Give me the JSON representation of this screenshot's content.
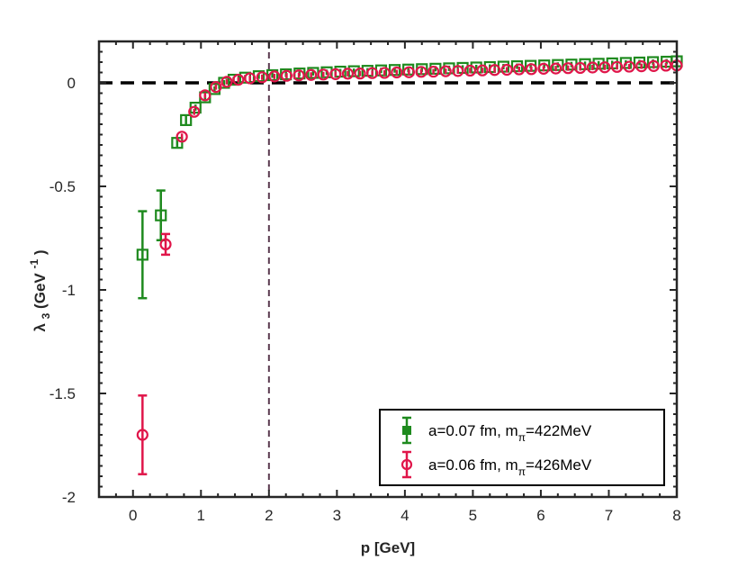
{
  "chart_data": {
    "type": "scatter",
    "xlabel": "p [GeV]",
    "ylabel": {
      "base": "λ",
      "sub": "3",
      "unit_open": "(GeV",
      "unit_sup": "-1",
      "unit_close": ")"
    },
    "xlim": [
      -0.5,
      8
    ],
    "ylim": [
      -2,
      0.2
    ],
    "xticks": [
      0,
      1,
      2,
      3,
      4,
      5,
      6,
      7,
      8
    ],
    "xtick_labels": [
      "0",
      "1",
      "2",
      "3",
      "4",
      "5",
      "6",
      "7",
      "8"
    ],
    "yticks": [
      0,
      -0.5,
      -1,
      -1.5,
      -2
    ],
    "ytick_labels": [
      "0",
      "-0.5",
      "-1",
      "-1.5",
      "-2"
    ],
    "reference_lines": [
      {
        "orientation": "horizontal",
        "value": 0,
        "style": "dashed",
        "color": "#000000"
      },
      {
        "orientation": "vertical",
        "value": 2,
        "style": "dashed",
        "color": "#5a3a4f"
      }
    ],
    "legend_position": "bottom-right",
    "series": [
      {
        "legend": {
          "pre": "a=0.07 fm, m",
          "sub": "π",
          "post": "=422MeV"
        },
        "marker": "square",
        "color": "#1e8a1e",
        "points": [
          {
            "x": 0.14,
            "y": -0.83,
            "err": 0.21
          },
          {
            "x": 0.41,
            "y": -0.64,
            "err": 0.12
          },
          {
            "x": 0.65,
            "y": -0.29,
            "err": 0.02
          },
          {
            "x": 0.78,
            "y": -0.18,
            "err": 0.02
          },
          {
            "x": 0.92,
            "y": -0.12,
            "err": 0.015
          },
          {
            "x": 1.06,
            "y": -0.07,
            "err": 0.01
          },
          {
            "x": 1.2,
            "y": -0.03,
            "err": 0.01
          },
          {
            "x": 1.34,
            "y": 0.0,
            "err": 0.01
          },
          {
            "x": 1.48,
            "y": 0.015,
            "err": 0.01
          },
          {
            "x": 1.65,
            "y": 0.025,
            "err": 0.008
          },
          {
            "x": 1.85,
            "y": 0.032,
            "err": 0.008
          },
          {
            "x": 2.05,
            "y": 0.037,
            "err": 0.008
          },
          {
            "x": 2.25,
            "y": 0.041,
            "err": 0.008
          },
          {
            "x": 2.45,
            "y": 0.045,
            "err": 0.008
          },
          {
            "x": 2.65,
            "y": 0.048,
            "err": 0.008
          },
          {
            "x": 2.85,
            "y": 0.051,
            "err": 0.008
          },
          {
            "x": 3.05,
            "y": 0.054,
            "err": 0.008
          },
          {
            "x": 3.25,
            "y": 0.056,
            "err": 0.008
          },
          {
            "x": 3.45,
            "y": 0.058,
            "err": 0.008
          },
          {
            "x": 3.65,
            "y": 0.06,
            "err": 0.008
          },
          {
            "x": 3.85,
            "y": 0.062,
            "err": 0.008
          },
          {
            "x": 4.05,
            "y": 0.064,
            "err": 0.008
          },
          {
            "x": 4.25,
            "y": 0.066,
            "err": 0.008
          },
          {
            "x": 4.45,
            "y": 0.068,
            "err": 0.008
          },
          {
            "x": 4.65,
            "y": 0.07,
            "err": 0.008
          },
          {
            "x": 4.85,
            "y": 0.072,
            "err": 0.008
          },
          {
            "x": 5.05,
            "y": 0.074,
            "err": 0.008
          },
          {
            "x": 5.25,
            "y": 0.076,
            "err": 0.008
          },
          {
            "x": 5.45,
            "y": 0.078,
            "err": 0.008
          },
          {
            "x": 5.65,
            "y": 0.08,
            "err": 0.008
          },
          {
            "x": 5.85,
            "y": 0.082,
            "err": 0.008
          },
          {
            "x": 6.05,
            "y": 0.084,
            "err": 0.008
          },
          {
            "x": 6.25,
            "y": 0.086,
            "err": 0.008
          },
          {
            "x": 6.45,
            "y": 0.088,
            "err": 0.008
          },
          {
            "x": 6.65,
            "y": 0.09,
            "err": 0.008
          },
          {
            "x": 6.85,
            "y": 0.092,
            "err": 0.008
          },
          {
            "x": 7.05,
            "y": 0.094,
            "err": 0.008
          },
          {
            "x": 7.25,
            "y": 0.096,
            "err": 0.008
          },
          {
            "x": 7.45,
            "y": 0.098,
            "err": 0.008
          },
          {
            "x": 7.65,
            "y": 0.1,
            "err": 0.008
          },
          {
            "x": 7.85,
            "y": 0.102,
            "err": 0.008
          },
          {
            "x": 8.0,
            "y": 0.104,
            "err": 0.008
          }
        ]
      },
      {
        "legend": {
          "pre": "a=0.06 fm, m",
          "sub": "π",
          "post": "=426MeV"
        },
        "marker": "circle",
        "color": "#e0164a",
        "points": [
          {
            "x": 0.14,
            "y": -1.7,
            "err": 0.19
          },
          {
            "x": 0.48,
            "y": -0.78,
            "err": 0.05
          },
          {
            "x": 0.72,
            "y": -0.26,
            "err": 0.015
          },
          {
            "x": 0.9,
            "y": -0.14,
            "err": 0.015
          },
          {
            "x": 1.06,
            "y": -0.06,
            "err": 0.01
          },
          {
            "x": 1.22,
            "y": -0.02,
            "err": 0.01
          },
          {
            "x": 1.38,
            "y": 0.005,
            "err": 0.008
          },
          {
            "x": 1.55,
            "y": 0.015,
            "err": 0.008
          },
          {
            "x": 1.72,
            "y": 0.022,
            "err": 0.008
          },
          {
            "x": 1.9,
            "y": 0.027,
            "err": 0.008
          },
          {
            "x": 2.08,
            "y": 0.031,
            "err": 0.008
          },
          {
            "x": 2.26,
            "y": 0.034,
            "err": 0.008
          },
          {
            "x": 2.44,
            "y": 0.036,
            "err": 0.008
          },
          {
            "x": 2.62,
            "y": 0.038,
            "err": 0.008
          },
          {
            "x": 2.8,
            "y": 0.04,
            "err": 0.008
          },
          {
            "x": 2.98,
            "y": 0.042,
            "err": 0.008
          },
          {
            "x": 3.16,
            "y": 0.044,
            "err": 0.008
          },
          {
            "x": 3.34,
            "y": 0.045,
            "err": 0.008
          },
          {
            "x": 3.52,
            "y": 0.047,
            "err": 0.008
          },
          {
            "x": 3.7,
            "y": 0.048,
            "err": 0.008
          },
          {
            "x": 3.88,
            "y": 0.05,
            "err": 0.008
          },
          {
            "x": 4.06,
            "y": 0.051,
            "err": 0.008
          },
          {
            "x": 4.24,
            "y": 0.053,
            "err": 0.008
          },
          {
            "x": 4.42,
            "y": 0.054,
            "err": 0.008
          },
          {
            "x": 4.6,
            "y": 0.056,
            "err": 0.008
          },
          {
            "x": 4.78,
            "y": 0.057,
            "err": 0.008
          },
          {
            "x": 4.96,
            "y": 0.059,
            "err": 0.008
          },
          {
            "x": 5.14,
            "y": 0.06,
            "err": 0.008
          },
          {
            "x": 5.32,
            "y": 0.062,
            "err": 0.008
          },
          {
            "x": 5.5,
            "y": 0.063,
            "err": 0.008
          },
          {
            "x": 5.68,
            "y": 0.065,
            "err": 0.008
          },
          {
            "x": 5.86,
            "y": 0.066,
            "err": 0.008
          },
          {
            "x": 6.04,
            "y": 0.068,
            "err": 0.008
          },
          {
            "x": 6.22,
            "y": 0.069,
            "err": 0.008
          },
          {
            "x": 6.4,
            "y": 0.071,
            "err": 0.008
          },
          {
            "x": 6.58,
            "y": 0.072,
            "err": 0.008
          },
          {
            "x": 6.76,
            "y": 0.074,
            "err": 0.008
          },
          {
            "x": 6.94,
            "y": 0.075,
            "err": 0.008
          },
          {
            "x": 7.12,
            "y": 0.077,
            "err": 0.008
          },
          {
            "x": 7.3,
            "y": 0.078,
            "err": 0.008
          },
          {
            "x": 7.48,
            "y": 0.08,
            "err": 0.008
          },
          {
            "x": 7.66,
            "y": 0.081,
            "err": 0.008
          },
          {
            "x": 7.84,
            "y": 0.083,
            "err": 0.008
          },
          {
            "x": 8.0,
            "y": 0.084,
            "err": 0.008
          }
        ]
      }
    ]
  }
}
